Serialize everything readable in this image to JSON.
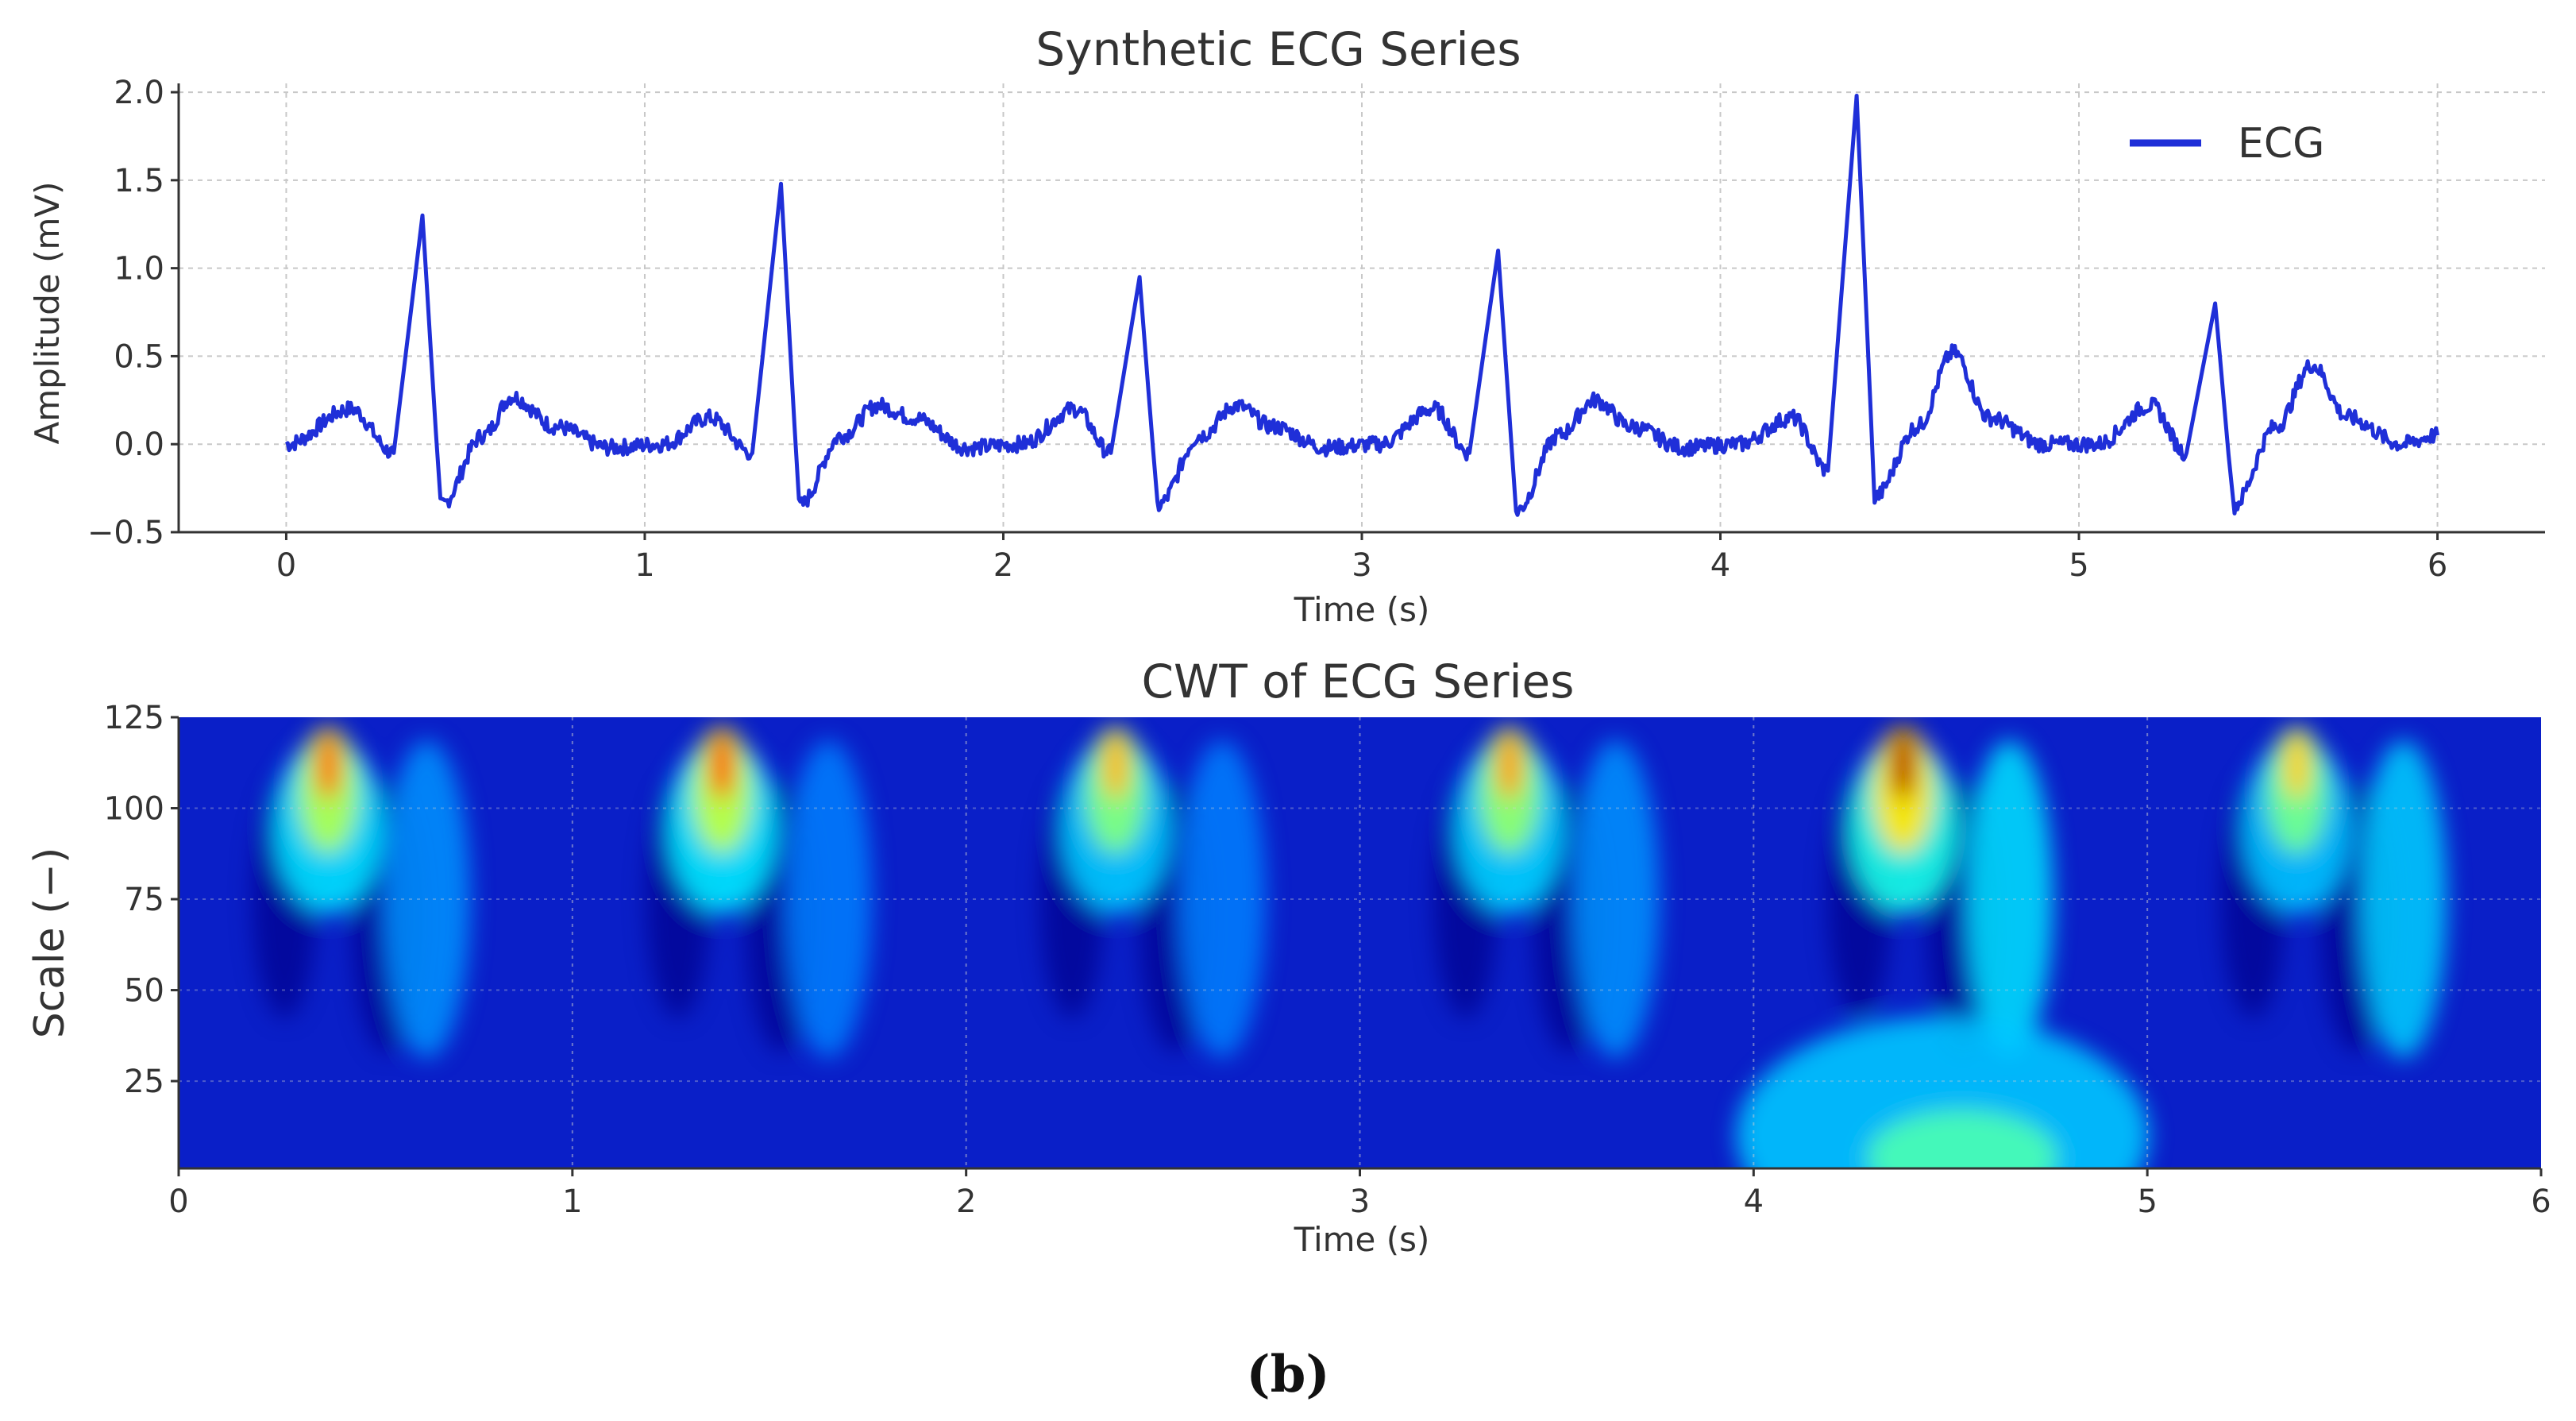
{
  "caption": "(b)",
  "colors": {
    "ecg_line": "#1f2fd8",
    "grid": "#c8c8c8",
    "axis": "#333333",
    "cwt_low": "#00008b",
    "cwt_high": "#ff0000"
  },
  "chart_data": [
    {
      "type": "line",
      "title": "Synthetic ECG Series",
      "xlabel": "Time (s)",
      "ylabel": "Amplitude (mV)",
      "xlim": [
        -0.3,
        6.3
      ],
      "ylim": [
        -0.5,
        2.05
      ],
      "xticks": [
        0,
        1,
        2,
        3,
        4,
        5,
        6
      ],
      "xtick_labels": [
        "0",
        "1",
        "2",
        "3",
        "4",
        "5",
        "6"
      ],
      "yticks": [
        -0.5,
        0.0,
        0.5,
        1.0,
        1.5,
        2.0
      ],
      "ytick_labels": [
        "−0.5",
        "0.0",
        "0.5",
        "1.0",
        "1.5",
        "2.0"
      ],
      "grid": true,
      "legend_position": "top-right",
      "series": [
        {
          "name": "ECG",
          "color": "#1f2fd8",
          "x": [
            0.0,
            0.18,
            0.3,
            0.38,
            0.43,
            0.55,
            0.63,
            0.75,
            0.9,
            1.05,
            1.18,
            1.3,
            1.38,
            1.43,
            1.55,
            1.65,
            1.75,
            1.9,
            2.05,
            2.2,
            2.3,
            2.38,
            2.43,
            2.55,
            2.65,
            2.75,
            2.9,
            3.05,
            3.2,
            3.3,
            3.38,
            3.43,
            3.55,
            3.65,
            3.75,
            3.9,
            4.05,
            4.2,
            4.3,
            4.38,
            4.43,
            4.55,
            4.65,
            4.75,
            4.9,
            5.05,
            5.2,
            5.3,
            5.38,
            5.43,
            5.55,
            5.65,
            5.75,
            5.9,
            6.0
          ],
          "y": [
            0.0,
            0.2,
            -0.05,
            1.3,
            -0.35,
            0.05,
            0.27,
            0.1,
            -0.02,
            0.0,
            0.15,
            -0.05,
            1.48,
            -0.35,
            0.05,
            0.22,
            0.15,
            -0.02,
            0.0,
            0.2,
            -0.05,
            0.95,
            -0.35,
            0.05,
            0.22,
            0.1,
            -0.02,
            0.0,
            0.2,
            -0.05,
            1.1,
            -0.38,
            0.05,
            0.25,
            0.1,
            -0.02,
            0.0,
            0.15,
            -0.15,
            1.98,
            -0.3,
            0.1,
            0.52,
            0.15,
            0.0,
            0.0,
            0.22,
            -0.05,
            0.8,
            -0.35,
            0.1,
            0.45,
            0.15,
            0.0,
            0.05
          ]
        }
      ]
    },
    {
      "type": "heatmap",
      "title": "CWT of ECG Series",
      "xlabel": "Time (s)",
      "ylabel": "Scale (−)",
      "xlim": [
        0,
        6
      ],
      "ylim": [
        1,
        125
      ],
      "xticks": [
        0,
        1,
        2,
        3,
        4,
        5,
        6
      ],
      "xtick_labels": [
        "0",
        "1",
        "2",
        "3",
        "4",
        "5",
        "6"
      ],
      "yticks": [
        25,
        50,
        75,
        100,
        125
      ],
      "ytick_labels": [
        "25",
        "50",
        "75",
        "100",
        "125"
      ],
      "grid": true,
      "colormap": "jet",
      "peaks": [
        {
          "time": 0.38,
          "intensity": 0.65
        },
        {
          "time": 1.38,
          "intensity": 0.7
        },
        {
          "time": 2.38,
          "intensity": 0.5
        },
        {
          "time": 3.38,
          "intensity": 0.55
        },
        {
          "time": 4.38,
          "intensity": 1.0
        },
        {
          "time": 5.38,
          "intensity": 0.45
        }
      ],
      "t_waves": [
        {
          "time": 0.63,
          "intensity": 0.3
        },
        {
          "time": 1.65,
          "intensity": 0.25
        },
        {
          "time": 2.65,
          "intensity": 0.25
        },
        {
          "time": 3.65,
          "intensity": 0.3
        },
        {
          "time": 4.65,
          "intensity": 0.5
        },
        {
          "time": 5.65,
          "intensity": 0.45
        }
      ]
    }
  ]
}
